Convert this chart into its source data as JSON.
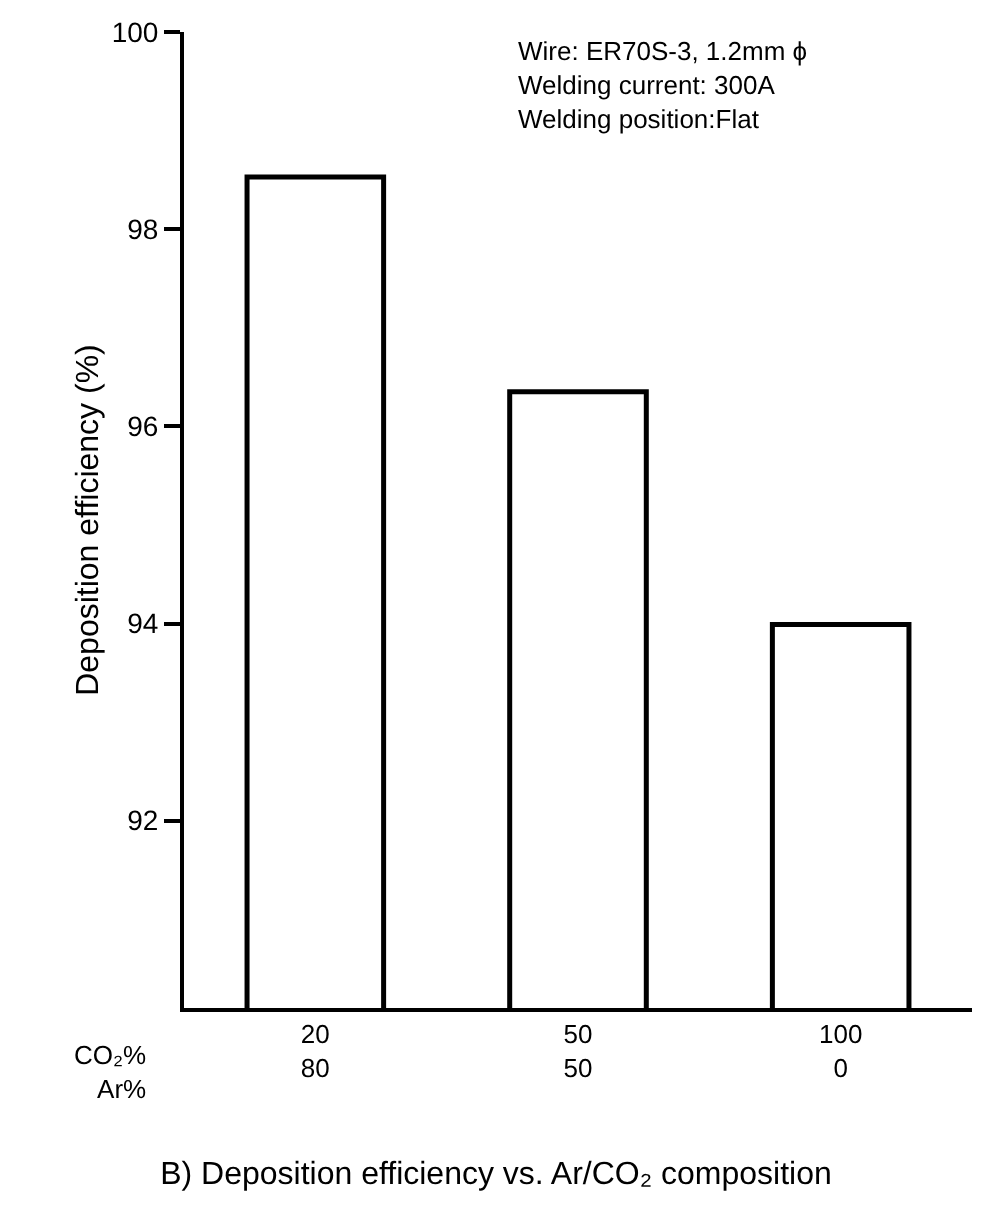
{
  "chart_data": {
    "type": "bar",
    "title": "B) Deposition efficiency vs. Ar/CO₂ composition",
    "ylabel": "Deposition efficiency (%)",
    "categories": [
      "20\n80",
      "50\n50",
      "100\n0"
    ],
    "values": [
      98.53,
      96.35,
      93.99
    ],
    "color": "#ffffff",
    "ylim": [
      90.1,
      100
    ],
    "yticks": [
      92,
      94,
      96,
      98,
      100
    ],
    "grid": false,
    "legend": false,
    "annotations": [
      "Wire: ER70S-3, 1.2mm ϕ\nWelding current: 300A\nWelding position:Flat",
      "CO₂%\nAr%"
    ]
  }
}
